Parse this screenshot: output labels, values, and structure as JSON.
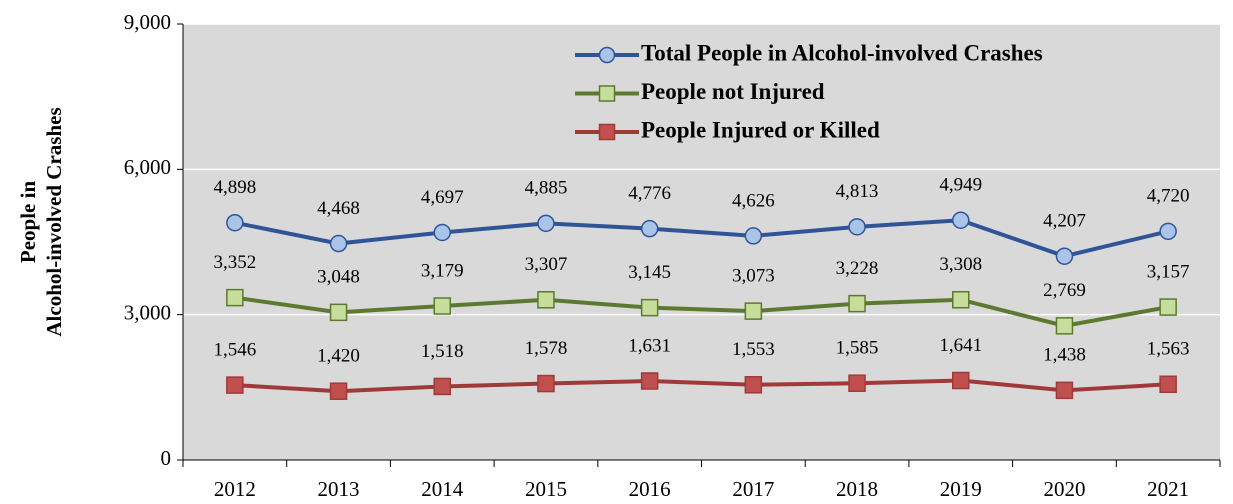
{
  "chart_data": {
    "type": "line",
    "ylabel": [
      "People in",
      "Alcohol-involved Crashes"
    ],
    "categories": [
      "2012",
      "2013",
      "2014",
      "2015",
      "2016",
      "2017",
      "2018",
      "2019",
      "2020",
      "2021"
    ],
    "series": [
      {
        "name": "Total People in Alcohol-involved Crashes",
        "color": "#2f5597",
        "marker": "circle",
        "marker_color": "#a9c4e8",
        "values": [
          4898,
          4468,
          4697,
          4885,
          4776,
          4626,
          4813,
          4949,
          4207,
          4720
        ],
        "value_labels": [
          "4,898",
          "4,468",
          "4,697",
          "4,885",
          "4,776",
          "4,626",
          "4,813",
          "4,949",
          "4,207",
          "4,720"
        ]
      },
      {
        "name": "People not Injured",
        "color": "#5b7a2f",
        "marker": "square",
        "marker_color": "#c7dd9c",
        "values": [
          3352,
          3048,
          3179,
          3307,
          3145,
          3073,
          3228,
          3308,
          2769,
          3157
        ],
        "value_labels": [
          "3,352",
          "3,048",
          "3,179",
          "3,307",
          "3,145",
          "3,073",
          "3,228",
          "3,308",
          "2,769",
          "3,157"
        ]
      },
      {
        "name": "People Injured or Killed",
        "color": "#a0393a",
        "marker": "square",
        "marker_color": "#c0504d",
        "values": [
          1546,
          1420,
          1518,
          1578,
          1631,
          1553,
          1585,
          1641,
          1438,
          1563
        ],
        "value_labels": [
          "1,546",
          "1,420",
          "1,518",
          "1,578",
          "1,631",
          "1,553",
          "1,585",
          "1,641",
          "1,438",
          "1,563"
        ]
      }
    ],
    "ylim": [
      0,
      9000
    ],
    "yticks": [
      0,
      {
        "value": 3000,
        "label": "3,000"
      },
      {
        "value": 6000,
        "label": "6,000"
      },
      {
        "value": 9000,
        "label": "9,000"
      }
    ],
    "grid": true,
    "background": "#d9d9d9",
    "legend": "top-right"
  }
}
